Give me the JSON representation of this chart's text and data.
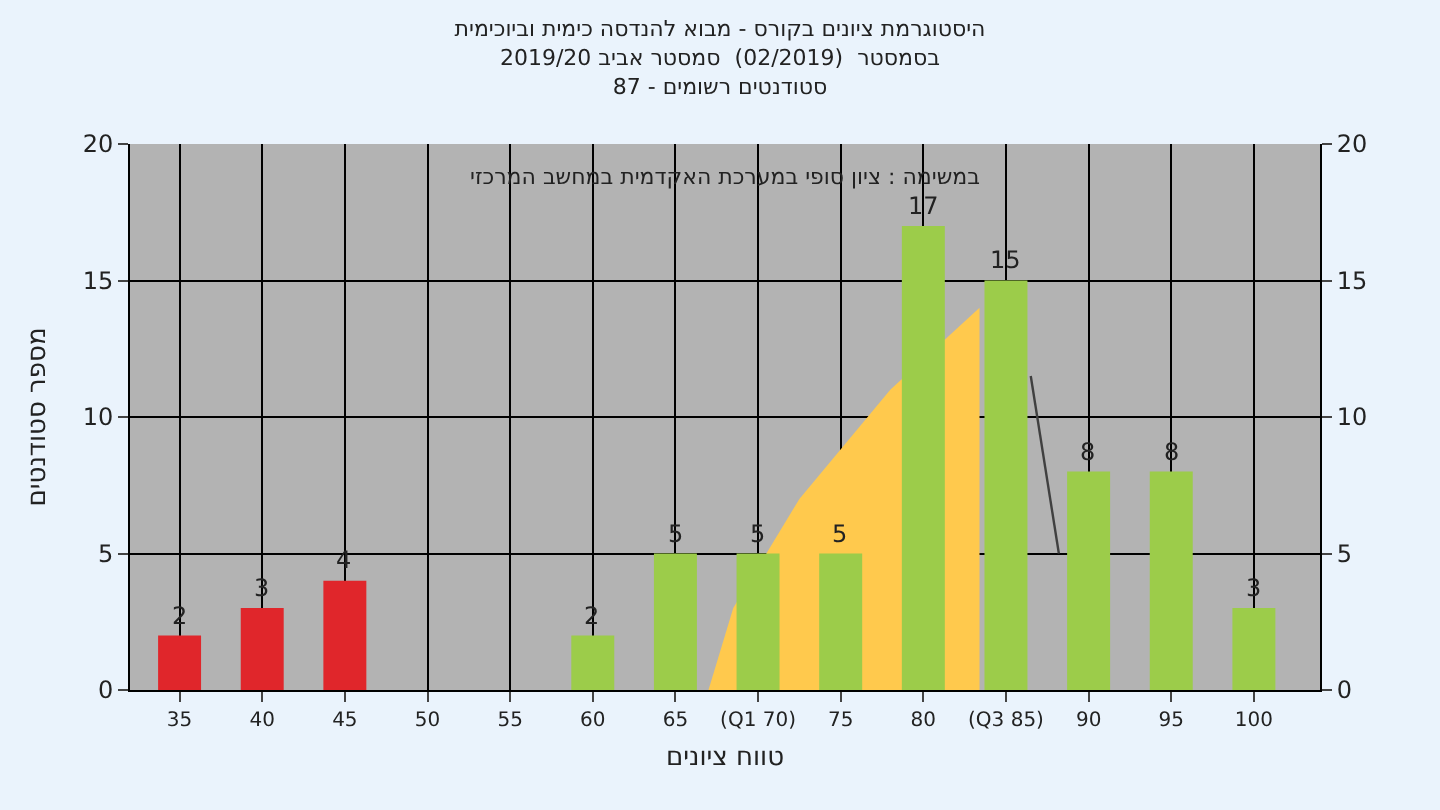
{
  "chart_data": {
    "type": "bar",
    "title": "היסטוגרמת ציונים בקורס - מבוא להנדסה כימית וביוכימית\nבסמסטר  (02/2019)  סמסטר אביב 2019/20\nסטודנטים רשומים - 87",
    "xlabel": "טווח ציונים",
    "ylabel": "מספר סטודנטים",
    "annotations": [
      "במשימה : ציון סופי במערכת האקדמית במחשב המרכזי"
    ],
    "x": [
      35,
      40,
      45,
      50,
      55,
      60,
      65,
      70,
      75,
      80,
      85,
      90,
      95,
      100
    ],
    "series": [
      {
        "type": "area",
        "color": "#ffc94d",
        "x": [
          67,
          68.5,
          72.5,
          78,
          83.4
        ],
        "values": [
          0,
          3,
          7,
          11,
          14
        ]
      },
      {
        "type": "line",
        "color": "#404040",
        "x": [
          86.5,
          88.2
        ],
        "values": [
          11.5,
          5
        ]
      },
      {
        "colors": [
          "#e0262b",
          "#e0262b",
          "#e0262b",
          "#e0262b",
          "#e0262b",
          "#9ccc4a",
          "#9ccc4a",
          "#9ccc4a",
          "#9ccc4a",
          "#9ccc4a",
          "#9ccc4a",
          "#9ccc4a",
          "#9ccc4a",
          "#9ccc4a"
        ],
        "values": [
          2,
          3,
          4,
          0,
          0,
          2,
          5,
          5,
          5,
          17,
          15,
          8,
          8,
          3
        ],
        "value_labels": [
          "2",
          "3",
          "4",
          null,
          null,
          "2",
          "5",
          "5",
          "5",
          "17",
          "15",
          "8",
          "8",
          "3"
        ]
      }
    ],
    "xlim": [
      32,
      104
    ],
    "xticks": [
      35,
      40,
      45,
      50,
      55,
      60,
      65,
      {
        "value": 70,
        "label": "(Q1 70)"
      },
      75,
      80,
      {
        "value": 85,
        "label": "(Q3 85)"
      },
      90,
      95,
      100
    ],
    "ylim": [
      0,
      20
    ],
    "yticks": [
      0,
      5,
      10,
      15,
      20
    ],
    "y2lim": [
      0,
      20
    ],
    "y2ticks": [
      0,
      5,
      10,
      15,
      20
    ],
    "grid": true
  }
}
